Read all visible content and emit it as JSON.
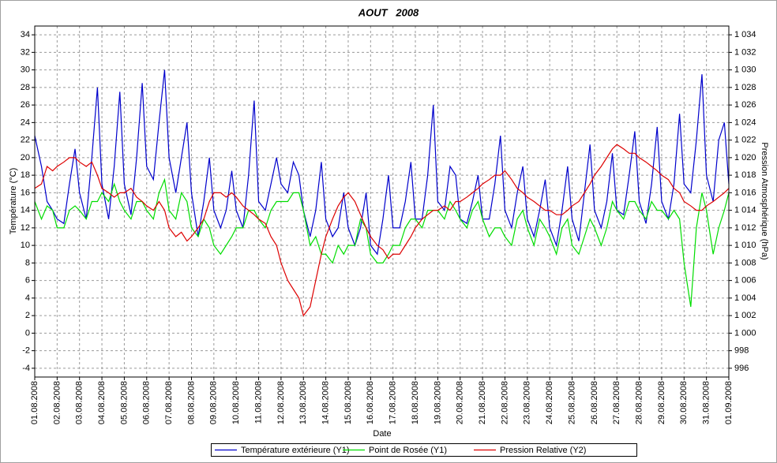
{
  "chart_data": {
    "type": "line",
    "title": "AOUT   2008",
    "x_label": "Date",
    "y_label": "Température (°C)",
    "y2_label": "Pression Atmosphérique (hPa)",
    "grid": true,
    "legend": "bottom",
    "xlim": [
      0,
      31
    ],
    "xticks": [
      {
        "value": 0,
        "label": "01.08.2008"
      },
      {
        "value": 1,
        "label": "02.08.2008"
      },
      {
        "value": 2,
        "label": "03.08.2008"
      },
      {
        "value": 3,
        "label": "04.08.2008"
      },
      {
        "value": 4,
        "label": "05.08.2008"
      },
      {
        "value": 5,
        "label": "06.08.2008"
      },
      {
        "value": 6,
        "label": "07.08.2008"
      },
      {
        "value": 7,
        "label": "08.08.2008"
      },
      {
        "value": 8,
        "label": "09.08.2008"
      },
      {
        "value": 9,
        "label": "10.08.2008"
      },
      {
        "value": 10,
        "label": "11.08.2008"
      },
      {
        "value": 11,
        "label": "12.08.2008"
      },
      {
        "value": 12,
        "label": "13.08.2008"
      },
      {
        "value": 13,
        "label": "14.08.2008"
      },
      {
        "value": 14,
        "label": "15.08.2008"
      },
      {
        "value": 15,
        "label": "16.08.2008"
      },
      {
        "value": 16,
        "label": "17.08.2008"
      },
      {
        "value": 17,
        "label": "18.08.2008"
      },
      {
        "value": 18,
        "label": "19.08.2008"
      },
      {
        "value": 19,
        "label": "20.08.2008"
      },
      {
        "value": 20,
        "label": "21.08.2008"
      },
      {
        "value": 21,
        "label": "22.08.2008"
      },
      {
        "value": 22,
        "label": "23.08.2008"
      },
      {
        "value": 23,
        "label": "24.08.2008"
      },
      {
        "value": 24,
        "label": "25.08.2008"
      },
      {
        "value": 25,
        "label": "26.08.2008"
      },
      {
        "value": 26,
        "label": "27.08.2008"
      },
      {
        "value": 27,
        "label": "28.08.2008"
      },
      {
        "value": 28,
        "label": "29.08.2008"
      },
      {
        "value": 29,
        "label": "30.08.2008"
      },
      {
        "value": 30,
        "label": "31.08.2008"
      },
      {
        "value": 31,
        "label": "01.09.2008"
      }
    ],
    "ylim": [
      -5,
      35
    ],
    "yticks": [
      -4,
      -2,
      0,
      2,
      4,
      6,
      8,
      10,
      12,
      14,
      16,
      18,
      20,
      22,
      24,
      26,
      28,
      30,
      32,
      34
    ],
    "y2lim": [
      995,
      1035
    ],
    "y2ticks": [
      996,
      998,
      {
        "value": 1000,
        "label": "1 000"
      },
      {
        "value": 1002,
        "label": "1 002"
      },
      {
        "value": 1004,
        "label": "1 004"
      },
      {
        "value": 1006,
        "label": "1 006"
      },
      {
        "value": 1008,
        "label": "1 008"
      },
      {
        "value": 1010,
        "label": "1 010"
      },
      {
        "value": 1012,
        "label": "1 012"
      },
      {
        "value": 1014,
        "label": "1 014"
      },
      {
        "value": 1016,
        "label": "1 016"
      },
      {
        "value": 1018,
        "label": "1 018"
      },
      {
        "value": 1020,
        "label": "1 020"
      },
      {
        "value": 1022,
        "label": "1 022"
      },
      {
        "value": 1024,
        "label": "1 024"
      },
      {
        "value": 1026,
        "label": "1 026"
      },
      {
        "value": 1028,
        "label": "1 028"
      },
      {
        "value": 1030,
        "label": "1 030"
      },
      {
        "value": 1032,
        "label": "1 032"
      },
      {
        "value": 1034,
        "label": "1 034"
      }
    ],
    "x": [
      0,
      0.3,
      0.55,
      0.8,
      1,
      1.3,
      1.55,
      1.8,
      2,
      2.3,
      2.55,
      2.8,
      3,
      3.3,
      3.55,
      3.8,
      4,
      4.3,
      4.55,
      4.8,
      5,
      5.3,
      5.55,
      5.8,
      6,
      6.3,
      6.55,
      6.8,
      7,
      7.3,
      7.55,
      7.8,
      8,
      8.3,
      8.55,
      8.8,
      9,
      9.3,
      9.55,
      9.8,
      10,
      10.3,
      10.55,
      10.8,
      11,
      11.3,
      11.55,
      11.8,
      12,
      12.3,
      12.55,
      12.8,
      13,
      13.3,
      13.55,
      13.8,
      14,
      14.3,
      14.55,
      14.8,
      15,
      15.3,
      15.55,
      15.8,
      16,
      16.3,
      16.55,
      16.8,
      17,
      17.3,
      17.55,
      17.8,
      18,
      18.3,
      18.55,
      18.8,
      19,
      19.3,
      19.55,
      19.8,
      20,
      20.3,
      20.55,
      20.8,
      21,
      21.3,
      21.55,
      21.8,
      22,
      22.3,
      22.55,
      22.8,
      23,
      23.3,
      23.55,
      23.8,
      24,
      24.3,
      24.55,
      24.8,
      25,
      25.3,
      25.55,
      25.8,
      26,
      26.3,
      26.55,
      26.8,
      27,
      27.3,
      27.55,
      27.8,
      28,
      28.3,
      28.55,
      28.8,
      29,
      29.3,
      29.55,
      29.8,
      30,
      30.3,
      30.55,
      30.8,
      31
    ],
    "series": [
      {
        "name": "Température extérieure (Y1)",
        "color": "#0000cc",
        "values": [
          22.5,
          19,
          15,
          14,
          13,
          12.5,
          17,
          21,
          16,
          13,
          20,
          28,
          17,
          13,
          19,
          27.5,
          17,
          13.5,
          20,
          28.5,
          19,
          17.5,
          24,
          30,
          20,
          16,
          20,
          24,
          16,
          11,
          15,
          20,
          14,
          12,
          14,
          18.5,
          14,
          12,
          18,
          26.5,
          15,
          14,
          17,
          20,
          17,
          16,
          19.5,
          18,
          14,
          11,
          14,
          19.5,
          13,
          11,
          12,
          16,
          12,
          10,
          12,
          16,
          10,
          9,
          13,
          18,
          12,
          12,
          15,
          19.5,
          13,
          13,
          18,
          26,
          15,
          14,
          19,
          18,
          13,
          12.5,
          15,
          18,
          13,
          13,
          17,
          22.5,
          14,
          12,
          16,
          19,
          13,
          11,
          14,
          17.5,
          12,
          10,
          14,
          19,
          13,
          10.5,
          16,
          21.5,
          14,
          12,
          15,
          20.5,
          14,
          13.5,
          18,
          23,
          15,
          12.5,
          17,
          23.5,
          15,
          13,
          17,
          25,
          17,
          16,
          22,
          29.5,
          18,
          15,
          22,
          24,
          17
        ]
      },
      {
        "name": "Point de Rosée (Y1)",
        "color": "#00dd00",
        "values": [
          15,
          13,
          14.5,
          14,
          12,
          12,
          14,
          14.5,
          14,
          13,
          15,
          15,
          16,
          15,
          17,
          15,
          14,
          13,
          15,
          15,
          14,
          13,
          16,
          17.5,
          14,
          13,
          16,
          15,
          12,
          11,
          13,
          12,
          10,
          9,
          10,
          11,
          12,
          12,
          14,
          14,
          13,
          12,
          14,
          15,
          15,
          15,
          16,
          16,
          14,
          10,
          11,
          9,
          9,
          8,
          10,
          9,
          10,
          10,
          13,
          12,
          9,
          8,
          8,
          9,
          10,
          10,
          12,
          13,
          13,
          12,
          14,
          14,
          14,
          13,
          15,
          14,
          13,
          12,
          14,
          15,
          13,
          11,
          12,
          12,
          11,
          10,
          13,
          14,
          12,
          10,
          13,
          12,
          11,
          9,
          12,
          13,
          10,
          9,
          11,
          13,
          12,
          10,
          12,
          15,
          14,
          13,
          15,
          15,
          14,
          13,
          15,
          14,
          14,
          13,
          14,
          13,
          8,
          3,
          12,
          16,
          14,
          9,
          12,
          14,
          16
        ]
      },
      {
        "name": "Pression Relative (Y2)",
        "color": "#dd0000",
        "axis": "y2",
        "values": [
          1016.5,
          1017,
          1019,
          1018.5,
          1019,
          1019.5,
          1020,
          1020,
          1019.5,
          1019,
          1019.5,
          1018,
          1016.5,
          1016,
          1015.5,
          1016,
          1016,
          1016.5,
          1015.5,
          1015,
          1014.5,
          1014,
          1015,
          1014,
          1012,
          1011,
          1011.5,
          1010.5,
          1011,
          1012,
          1013,
          1015,
          1016,
          1016,
          1015.5,
          1016,
          1015.5,
          1014.5,
          1014,
          1013.5,
          1013,
          1012.5,
          1011,
          1010,
          1008,
          1006,
          1005,
          1004,
          1002,
          1003,
          1006,
          1009,
          1011,
          1013,
          1014.5,
          1015.5,
          1016,
          1015,
          1013.5,
          1012,
          1011,
          1010,
          1009.5,
          1008.5,
          1009,
          1009,
          1010,
          1011,
          1012,
          1013,
          1013.5,
          1014,
          1014,
          1014.5,
          1014,
          1015,
          1015,
          1015.5,
          1016,
          1016.5,
          1017,
          1017.5,
          1018,
          1018,
          1018.5,
          1017.5,
          1016.5,
          1016,
          1015.5,
          1015,
          1014.5,
          1014,
          1014,
          1013.5,
          1013.5,
          1014,
          1014.5,
          1015,
          1016,
          1017,
          1018,
          1019,
          1020,
          1021,
          1021.5,
          1021,
          1020.5,
          1020.5,
          1020,
          1019.5,
          1019,
          1018.5,
          1018,
          1017.5,
          1016.5,
          1016,
          1015,
          1014.5,
          1014,
          1014,
          1014.5,
          1015,
          1015.5,
          1016,
          1016.5
        ]
      }
    ]
  }
}
